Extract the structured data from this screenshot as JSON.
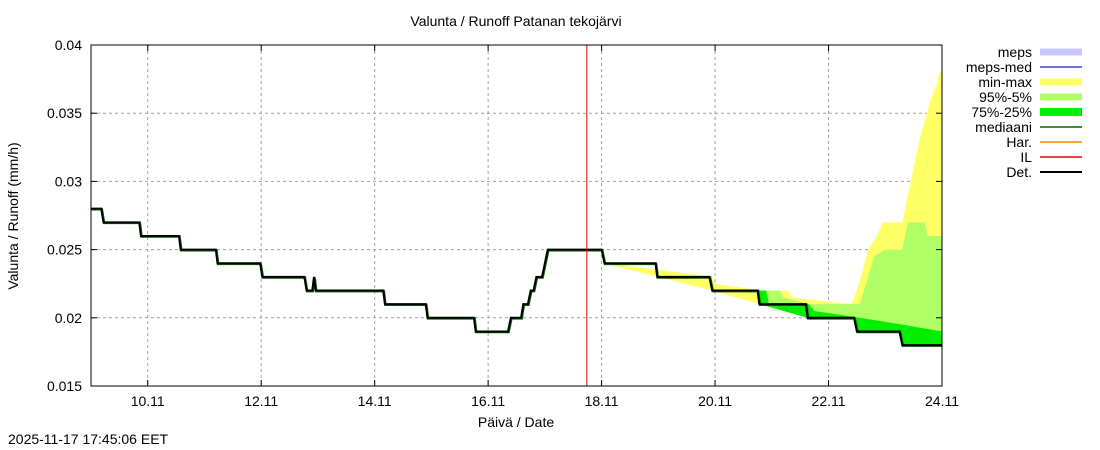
{
  "chart_data": {
    "type": "line",
    "title": "Valunta / Runoff  Patanan tekojärvi",
    "xlabel": "Päivä / Date",
    "ylabel": "Valunta / Runoff (mm/h)",
    "ylim": [
      0.015,
      0.04
    ],
    "yticks": [
      "0.015",
      "0.02",
      "0.025",
      "0.03",
      "0.035",
      "0.04"
    ],
    "xlim_days": [
      9.0,
      24.0
    ],
    "xticks": [
      "10.11",
      "12.11",
      "14.11",
      "16.11",
      "18.11",
      "20.11",
      "22.11",
      "24.11"
    ],
    "grid": true,
    "legend_position": "right",
    "now_marker_day": 17.74,
    "legend": [
      {
        "label": "meps",
        "color": "#c8c8ff",
        "kind": "band"
      },
      {
        "label": "meps-med",
        "color": "#4040d0",
        "kind": "line"
      },
      {
        "label": "min-max",
        "color": "#ffff66",
        "kind": "band"
      },
      {
        "label": "95%-5%",
        "color": "#b0ff66",
        "kind": "band"
      },
      {
        "label": "75%-25%",
        "color": "#00ee00",
        "kind": "band"
      },
      {
        "label": "mediaani",
        "color": "#006400",
        "kind": "line"
      },
      {
        "label": "Har.",
        "color": "#ff8000",
        "kind": "line"
      },
      {
        "label": "IL",
        "color": "#e00000",
        "kind": "line"
      },
      {
        "label": "Det.",
        "color": "#000000",
        "kind": "line"
      }
    ],
    "series": [
      {
        "name": "Det.",
        "color": "#000000",
        "points": [
          [
            9.0,
            0.028
          ],
          [
            9.18,
            0.028
          ],
          [
            9.22,
            0.027
          ],
          [
            9.85,
            0.027
          ],
          [
            9.88,
            0.026
          ],
          [
            10.55,
            0.026
          ],
          [
            10.58,
            0.025
          ],
          [
            11.2,
            0.025
          ],
          [
            11.23,
            0.024
          ],
          [
            11.98,
            0.024
          ],
          [
            12.02,
            0.023
          ],
          [
            12.76,
            0.023
          ],
          [
            12.8,
            0.022
          ],
          [
            12.9,
            0.022
          ],
          [
            12.93,
            0.023
          ],
          [
            12.96,
            0.022
          ],
          [
            14.15,
            0.022
          ],
          [
            14.18,
            0.021
          ],
          [
            14.9,
            0.021
          ],
          [
            14.93,
            0.02
          ],
          [
            15.75,
            0.02
          ],
          [
            15.78,
            0.019
          ],
          [
            16.35,
            0.019
          ],
          [
            16.4,
            0.02
          ],
          [
            16.58,
            0.02
          ],
          [
            16.62,
            0.021
          ],
          [
            16.7,
            0.021
          ],
          [
            16.75,
            0.022
          ],
          [
            16.8,
            0.022
          ],
          [
            16.85,
            0.023
          ],
          [
            16.95,
            0.023
          ],
          [
            17.05,
            0.025
          ],
          [
            18.0,
            0.025
          ],
          [
            18.05,
            0.024
          ],
          [
            18.95,
            0.024
          ],
          [
            18.98,
            0.023
          ],
          [
            19.9,
            0.023
          ],
          [
            19.95,
            0.022
          ],
          [
            20.75,
            0.022
          ],
          [
            20.78,
            0.021
          ],
          [
            21.6,
            0.021
          ],
          [
            21.63,
            0.02
          ],
          [
            22.45,
            0.02
          ],
          [
            22.5,
            0.019
          ],
          [
            23.25,
            0.019
          ],
          [
            23.3,
            0.018
          ],
          [
            24.0,
            0.018
          ]
        ]
      }
    ],
    "bands": [
      {
        "name": "min-max",
        "color": "#ffff66",
        "upper": [
          [
            17.98,
            0.025
          ],
          [
            18.05,
            0.0245
          ],
          [
            18.1,
            0.024
          ],
          [
            19.95,
            0.023
          ],
          [
            20.0,
            0.0225
          ],
          [
            20.8,
            0.022
          ],
          [
            21.3,
            0.022
          ],
          [
            21.35,
            0.0215
          ],
          [
            22.4,
            0.021
          ],
          [
            22.5,
            0.022
          ],
          [
            22.6,
            0.0235
          ],
          [
            22.7,
            0.025
          ],
          [
            22.85,
            0.026
          ],
          [
            22.95,
            0.027
          ],
          [
            23.3,
            0.027
          ],
          [
            23.4,
            0.029
          ],
          [
            23.5,
            0.031
          ],
          [
            23.6,
            0.033
          ],
          [
            23.7,
            0.0345
          ],
          [
            23.8,
            0.036
          ],
          [
            23.9,
            0.037
          ],
          [
            23.95,
            0.038
          ],
          [
            24.0,
            0.038
          ]
        ],
        "lower": [
          [
            24.0,
            0.018
          ],
          [
            23.3,
            0.018
          ],
          [
            23.25,
            0.019
          ],
          [
            22.5,
            0.019
          ],
          [
            22.45,
            0.02
          ],
          [
            21.63,
            0.02
          ],
          [
            20.78,
            0.021
          ],
          [
            19.95,
            0.022
          ],
          [
            18.98,
            0.023
          ],
          [
            18.05,
            0.024
          ],
          [
            17.98,
            0.025
          ]
        ]
      },
      {
        "name": "95%-5%",
        "color": "#b0ff66",
        "upper": [
          [
            20.75,
            0.022
          ],
          [
            21.15,
            0.022
          ],
          [
            21.2,
            0.0215
          ],
          [
            21.65,
            0.021
          ],
          [
            22.55,
            0.021
          ],
          [
            22.7,
            0.023
          ],
          [
            22.8,
            0.0245
          ],
          [
            23.0,
            0.025
          ],
          [
            23.3,
            0.025
          ],
          [
            23.4,
            0.027
          ],
          [
            23.7,
            0.027
          ],
          [
            23.75,
            0.026
          ],
          [
            24.0,
            0.026
          ]
        ],
        "lower": [
          [
            24.0,
            0.0185
          ],
          [
            23.3,
            0.0185
          ],
          [
            23.25,
            0.019
          ],
          [
            22.5,
            0.019
          ],
          [
            22.45,
            0.02
          ],
          [
            21.65,
            0.0205
          ],
          [
            20.8,
            0.021
          ],
          [
            20.75,
            0.022
          ]
        ]
      },
      {
        "name": "75%-25%",
        "color": "#00ee00",
        "upper": [
          [
            20.75,
            0.022
          ],
          [
            20.9,
            0.022
          ],
          [
            20.95,
            0.021
          ],
          [
            21.65,
            0.021
          ],
          [
            21.75,
            0.0205
          ],
          [
            22.55,
            0.02
          ],
          [
            23.3,
            0.0195
          ],
          [
            24.0,
            0.019
          ]
        ],
        "lower": [
          [
            24.0,
            0.018
          ],
          [
            23.3,
            0.018
          ],
          [
            23.25,
            0.019
          ],
          [
            22.5,
            0.019
          ],
          [
            22.45,
            0.02
          ],
          [
            21.63,
            0.02
          ],
          [
            20.78,
            0.021
          ],
          [
            20.75,
            0.022
          ]
        ]
      }
    ]
  },
  "footer": {
    "timestamp": "2025-11-17 17:45:06 EET"
  }
}
